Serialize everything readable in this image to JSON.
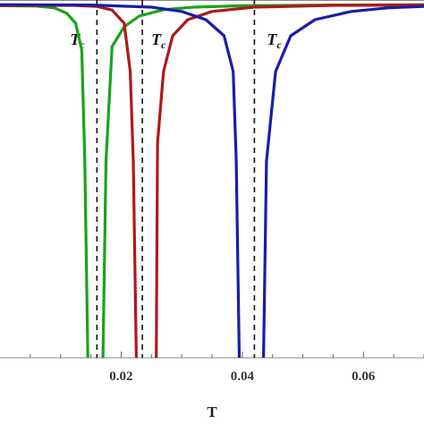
{
  "chart_data": {
    "type": "line",
    "xlabel": "T",
    "ylabel": "",
    "title": "",
    "xlim": [
      0.0,
      0.07
    ],
    "ylim": [
      0.0,
      1.0
    ],
    "grid": false,
    "x_ticks": [
      {
        "value": 0.02,
        "label": "0.02"
      },
      {
        "value": 0.04,
        "label": "0.04"
      },
      {
        "value": 0.06,
        "label": "0.06"
      }
    ],
    "tc_lines": [
      {
        "x": 0.016,
        "label": "T",
        "sub": "c"
      },
      {
        "x": 0.0235,
        "label": "T",
        "sub": "c"
      },
      {
        "x": 0.042,
        "label": "T",
        "sub": "c"
      }
    ],
    "series": [
      {
        "color": "#1aa31a",
        "segments": [
          [
            [
              0.0,
              0.984
            ],
            [
              0.006,
              0.983
            ],
            [
              0.009,
              0.978
            ],
            [
              0.011,
              0.963
            ],
            [
              0.0125,
              0.935
            ],
            [
              0.0135,
              0.86
            ],
            [
              0.014,
              0.55
            ],
            [
              0.0145,
              0.0
            ]
          ],
          [
            [
              0.017,
              0.0
            ],
            [
              0.0175,
              0.55
            ],
            [
              0.0185,
              0.87
            ],
            [
              0.0205,
              0.925
            ],
            [
              0.023,
              0.955
            ],
            [
              0.027,
              0.973
            ],
            [
              0.032,
              0.98
            ],
            [
              0.04,
              0.984
            ],
            [
              0.055,
              0.986
            ],
            [
              0.07,
              0.987
            ]
          ]
        ]
      },
      {
        "color": "#b01818",
        "segments": [
          [
            [
              0.0,
              0.985
            ],
            [
              0.012,
              0.985
            ],
            [
              0.016,
              0.982
            ],
            [
              0.0185,
              0.972
            ],
            [
              0.0205,
              0.935
            ],
            [
              0.0215,
              0.8
            ],
            [
              0.022,
              0.55
            ],
            [
              0.0225,
              0.0
            ]
          ],
          [
            [
              0.0258,
              0.0
            ],
            [
              0.026,
              0.6
            ],
            [
              0.027,
              0.8
            ],
            [
              0.0285,
              0.9
            ],
            [
              0.031,
              0.945
            ],
            [
              0.035,
              0.968
            ],
            [
              0.042,
              0.98
            ],
            [
              0.055,
              0.985
            ],
            [
              0.07,
              0.986
            ]
          ]
        ]
      },
      {
        "color": "#1c1ca8",
        "segments": [
          [
            [
              0.0,
              0.987
            ],
            [
              0.015,
              0.986
            ],
            [
              0.025,
              0.98
            ],
            [
              0.03,
              0.968
            ],
            [
              0.034,
              0.945
            ],
            [
              0.037,
              0.9
            ],
            [
              0.0385,
              0.8
            ],
            [
              0.039,
              0.55
            ],
            [
              0.0395,
              0.0
            ]
          ],
          [
            [
              0.0435,
              0.0
            ],
            [
              0.044,
              0.55
            ],
            [
              0.0455,
              0.8
            ],
            [
              0.048,
              0.9
            ],
            [
              0.052,
              0.945
            ],
            [
              0.058,
              0.968
            ],
            [
              0.064,
              0.978
            ],
            [
              0.07,
              0.982
            ]
          ]
        ]
      }
    ]
  }
}
